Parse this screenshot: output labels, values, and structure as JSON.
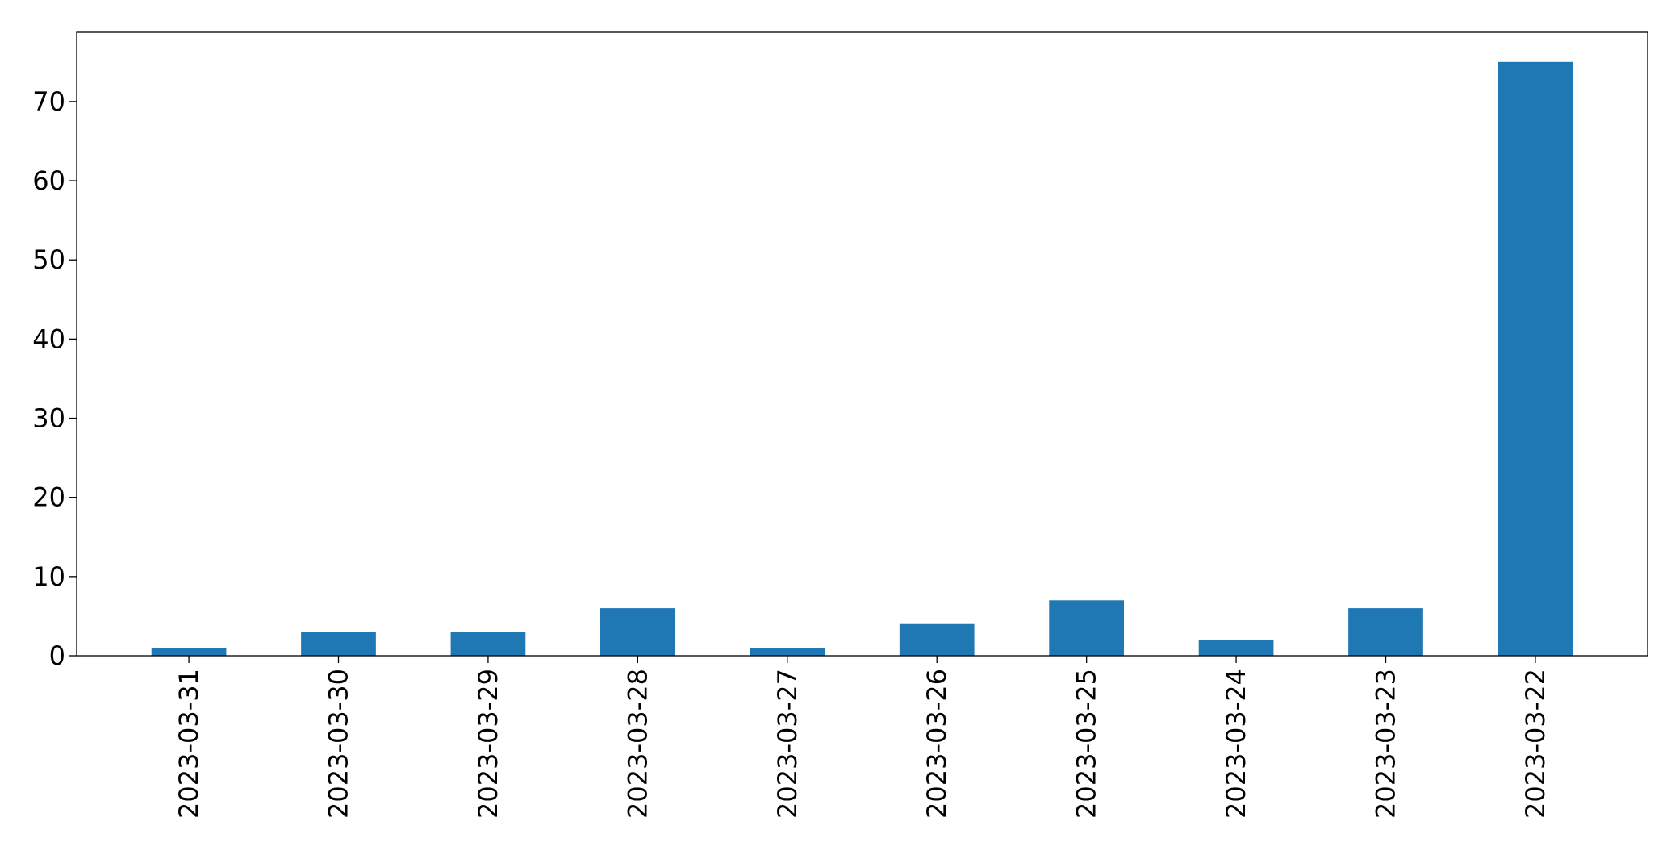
{
  "chart_data": {
    "type": "bar",
    "title": "",
    "xlabel": "",
    "ylabel": "",
    "categories": [
      "2023-03-31",
      "2023-03-30",
      "2023-03-29",
      "2023-03-28",
      "2023-03-27",
      "2023-03-26",
      "2023-03-25",
      "2023-03-24",
      "2023-03-23",
      "2023-03-22"
    ],
    "values": [
      1,
      3,
      3,
      6,
      1,
      4,
      7,
      2,
      6,
      75
    ],
    "ylim": [
      0,
      78.75
    ],
    "yticks": [
      0,
      10,
      20,
      30,
      40,
      50,
      60,
      70
    ],
    "bar_color": "#1f77b4",
    "grid": false,
    "legend": "none"
  }
}
